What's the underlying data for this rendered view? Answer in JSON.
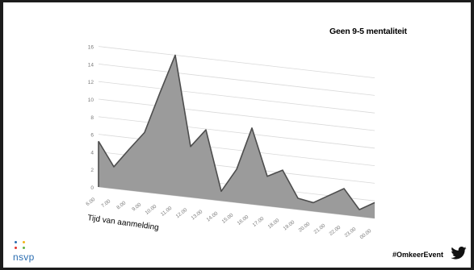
{
  "slide": {
    "title": "Geen 9-5 mentaliteit",
    "hashtag": "#OmkeerEvent",
    "logo_text": "nsvp",
    "logo_dot_colors": [
      "#2a6db0",
      "#f2b418",
      "#e2332d",
      "#5fb245"
    ],
    "icons": [
      "twitter-bird-icon"
    ]
  },
  "chart_data": {
    "type": "area",
    "title": "",
    "xlabel": "Tijd van aanmelding",
    "ylabel": "",
    "ylim": [
      0,
      16
    ],
    "yticks": [
      "0",
      "2",
      "4",
      "6",
      "8",
      "10",
      "12",
      "14",
      "16"
    ],
    "categories": [
      "6.00",
      "7.00",
      "8.00",
      "9.00",
      "10.00",
      "11.00",
      "12.00",
      "13.00",
      "14.00",
      "15.00",
      "16.00",
      "17.00",
      "18.00",
      "19.00",
      "20.00",
      "21.00",
      "22.00",
      "23.00",
      "00.00"
    ],
    "x": [
      6,
      6.5,
      7,
      7.5,
      8,
      8.5,
      9,
      9.5,
      10,
      10.5,
      11,
      11.5,
      12,
      12.5,
      13,
      13.5,
      14,
      14.5,
      15,
      15.5,
      16,
      16.5,
      17,
      17.5,
      18,
      18.5,
      19,
      19.5,
      20,
      20.5,
      21,
      21.5,
      22,
      22.5,
      23,
      23.5,
      24
    ],
    "series": [
      {
        "values": [
          5.2,
          2.5,
          4.7,
          6.8,
          11.5,
          16,
          5.8,
          7.9,
          1.1,
          3.8,
          8.7,
          3.4,
          4.3,
          1.3,
          1.0,
          2.0,
          3.0,
          0.8,
          1.8
        ]
      }
    ],
    "x_indices": [
      0,
      1,
      2,
      3,
      4,
      5,
      6,
      7,
      8,
      9,
      10,
      11,
      12,
      13,
      14,
      15,
      16,
      17,
      18
    ],
    "area_color": "#9b9b9b",
    "edge_color": "#4d4d4d",
    "grid": true,
    "legend": "none"
  }
}
